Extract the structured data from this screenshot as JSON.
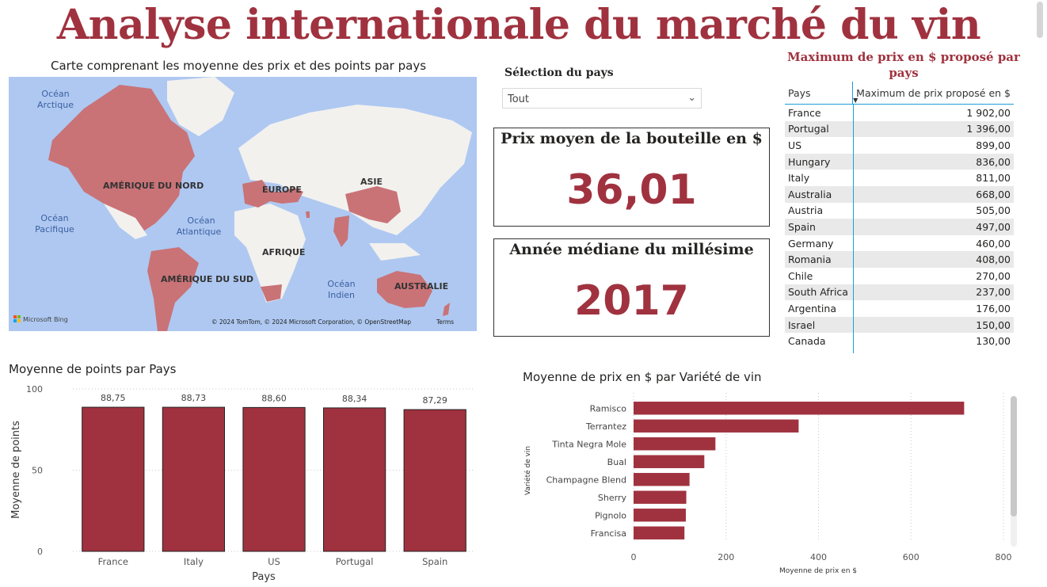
{
  "page_title": "Analyse internationale du marché du vin",
  "map": {
    "title": "Carte comprenant les moyenne des prix et des points par pays",
    "labels": {
      "na": "AMÉRIQUE DU NORD",
      "sa": "AMÉRIQUE DU SUD",
      "eu": "EUROPE",
      "af": "AFRIQUE",
      "as": "ASIE",
      "au": "AUSTRALIE",
      "arctic_1": "Océan",
      "arctic_2": "Arctique",
      "pacific_1": "Océan",
      "pacific_2": "Pacifique",
      "atlantic_1": "Océan",
      "atlantic_2": "Atlantique",
      "indian_1": "Océan",
      "indian_2": "Indien"
    },
    "bing": "Microsoft Bing",
    "copyright": "© 2024 TomTom, © 2024 Microsoft Corporation, © OpenStreetMap",
    "terms": "Terms",
    "colors": {
      "water": "#aec8f1",
      "land": "#f2f1ee",
      "highlight": "#c97377"
    }
  },
  "slicer": {
    "title": "Sélection du pays",
    "value": "Tout"
  },
  "card_price": {
    "title": "Prix moyen de la bouteille en $",
    "value": "36,01"
  },
  "card_year": {
    "title": "Année médiane du millésime",
    "value": "2017"
  },
  "max_table": {
    "title": "Maximum de prix en $ proposé par pays",
    "col_country": "Pays",
    "col_max": "Maximum de prix proposé en $",
    "rows": [
      {
        "country": "France",
        "value": "1 902,00"
      },
      {
        "country": "Portugal",
        "value": "1 396,00"
      },
      {
        "country": "US",
        "value": "899,00"
      },
      {
        "country": "Hungary",
        "value": "836,00"
      },
      {
        "country": "Italy",
        "value": "811,00"
      },
      {
        "country": "Australia",
        "value": "668,00"
      },
      {
        "country": "Austria",
        "value": "505,00"
      },
      {
        "country": "Spain",
        "value": "497,00"
      },
      {
        "country": "Germany",
        "value": "460,00"
      },
      {
        "country": "Romania",
        "value": "408,00"
      },
      {
        "country": "Chile",
        "value": "270,00"
      },
      {
        "country": "South Africa",
        "value": "237,00"
      },
      {
        "country": "Argentina",
        "value": "176,00"
      },
      {
        "country": "Israel",
        "value": "150,00"
      },
      {
        "country": "Canada",
        "value": "130,00"
      }
    ]
  },
  "chart_data": [
    {
      "type": "bar",
      "title": "Moyenne de points par Pays",
      "categories": [
        "France",
        "Italy",
        "US",
        "Portugal",
        "Spain"
      ],
      "values": [
        88.75,
        88.73,
        88.6,
        88.34,
        87.29
      ],
      "value_labels": [
        "88,75",
        "88,73",
        "88,60",
        "88,34",
        "87,29"
      ],
      "xlabel": "Pays",
      "ylabel": "Moyenne de points",
      "ylim": [
        0,
        100
      ],
      "yticks": [
        0,
        50,
        100
      ],
      "color": "#a0323f"
    },
    {
      "type": "bar",
      "orientation": "horizontal",
      "title": "Moyenne de prix en $ par Variété de vin",
      "categories": [
        "Ramisco",
        "Terrantez",
        "Tinta Negra Mole",
        "Bual",
        "Champagne Blend",
        "Sherry",
        "Pignolo",
        "Francisa"
      ],
      "values": [
        715,
        357,
        177,
        153,
        121,
        114,
        113,
        110
      ],
      "xlabel": "Moyenne de prix en $",
      "ylabel": "Variété de vin",
      "xlim": [
        0,
        800
      ],
      "xticks": [
        0,
        200,
        400,
        600,
        800
      ],
      "color": "#a0323f"
    }
  ]
}
